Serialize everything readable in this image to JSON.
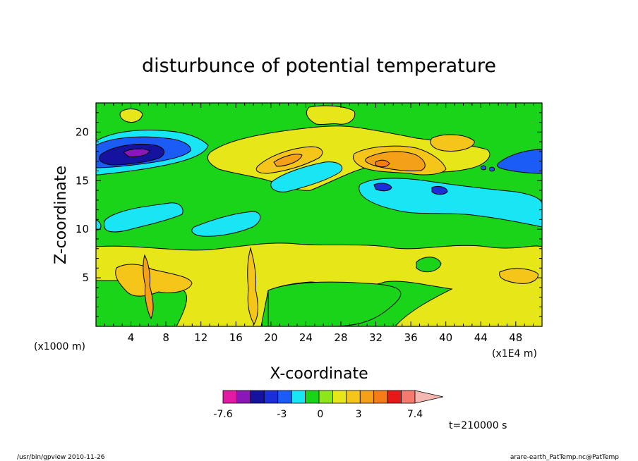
{
  "chart_data": {
    "type": "heatmap",
    "title": "disturbunce of potential temperature",
    "xlabel": "X-coordinate",
    "ylabel": "Z-coordinate",
    "x_scale_note": "(x1E4 m)",
    "y_scale_note": "(x1000 m)",
    "xlim": [
      0,
      51
    ],
    "ylim": [
      0,
      23
    ],
    "x_ticks": [
      4,
      8,
      12,
      16,
      20,
      24,
      28,
      32,
      36,
      40,
      44,
      48
    ],
    "x_tick_labels": [
      "4",
      "8",
      "12",
      "16",
      "20",
      "24",
      "28",
      "32",
      "36",
      "40",
      "44",
      "48"
    ],
    "y_ticks": [
      5,
      10,
      15,
      20
    ],
    "y_tick_labels": [
      "5",
      "10",
      "15",
      "20"
    ],
    "time_label": "t=210000 s",
    "colorbar": {
      "colors": [
        "#e21aa6",
        "#8b17b8",
        "#14129e",
        "#1a2fd8",
        "#1a5cf5",
        "#19e6f5",
        "#19d419",
        "#8ce619",
        "#e6e619",
        "#f5c619",
        "#f5a019",
        "#f57c19",
        "#e61919",
        "#f57a6e",
        "#f5b8b0"
      ],
      "labels": [
        "-7.6",
        "-3",
        "0",
        "3",
        "7.4"
      ],
      "label_values": [
        -7.6,
        -3,
        0,
        3,
        7.4
      ]
    },
    "regions": [
      {
        "level": "warm-1",
        "x": [
          1,
          14
        ],
        "z": [
          0.5,
          8.5
        ],
        "note": "yellow layer"
      },
      {
        "level": "warm-1",
        "x": [
          20,
          51
        ],
        "z": [
          1,
          8.5
        ]
      },
      {
        "level": "warm-2",
        "x": [
          3,
          9
        ],
        "z": [
          3,
          6
        ]
      },
      {
        "level": "warm-3",
        "x": [
          20,
          24
        ],
        "z": [
          16,
          18
        ]
      },
      {
        "level": "warm-3",
        "x": [
          31,
          39
        ],
        "z": [
          15.5,
          18
        ]
      },
      {
        "level": "cool-1",
        "x": [
          0,
          12
        ],
        "z": [
          15,
          19
        ]
      },
      {
        "level": "cool-1",
        "x": [
          30,
          51
        ],
        "z": [
          10,
          15
        ]
      },
      {
        "level": "cool-3",
        "x": [
          1,
          9
        ],
        "z": [
          16,
          18.5
        ]
      },
      {
        "level": "cool-4",
        "x": [
          47,
          51
        ],
        "z": [
          16,
          18
        ]
      }
    ]
  },
  "footer": {
    "left": "/usr/bin/gpview   2010-11-26",
    "right": "arare-earth_PatTemp.nc@PatTemp"
  }
}
